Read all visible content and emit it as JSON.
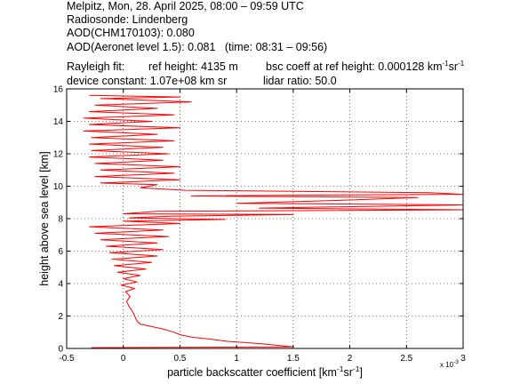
{
  "header": {
    "line1": "Melpitz, Mon, 28. April 2025, 08:00 – 09:59 UTC",
    "line2": "Radiosonde: Lindenberg",
    "line3": "AOD(CHM170103): 0.080",
    "line4": "AOD(Aeronet level 1.5): 0.081   (time: 08:31 – 09:56)",
    "rayleigh_label": "Rayleigh fit:",
    "ref_height": "ref height: 4135 m",
    "bsc_coeff_prefix": "bsc coeff at ref height: 0.000128 km",
    "bsc_coeff_unit_km_exp": "-1",
    "bsc_coeff_unit_sr": "sr",
    "bsc_coeff_unit_sr_exp": "-1",
    "device_constant": "device constant: 1.07e+08 km sr",
    "lidar_ratio": "lidar ratio: 50.0"
  },
  "chart_data": {
    "type": "line",
    "xlabel_prefix": "particle backscatter coefficient [km",
    "xlabel_exp1": "-1",
    "xlabel_mid": "sr",
    "xlabel_exp2": "-1",
    "xlabel_suffix": "]",
    "ylabel": "height above sea level [km]",
    "x_multiplier_label": "x 10",
    "x_multiplier_exp": "-3",
    "xlim": [
      -0.5,
      3
    ],
    "ylim": [
      0,
      16
    ],
    "xticks": [
      -0.5,
      0,
      0.5,
      1,
      1.5,
      2,
      2.5,
      3
    ],
    "xtick_labels": [
      "-0.5",
      "0",
      "0.5",
      "1",
      "1.5",
      "2",
      "2.5",
      "3"
    ],
    "yticks": [
      0,
      2,
      4,
      6,
      8,
      10,
      12,
      14,
      16
    ],
    "ytick_labels": [
      "0",
      "2",
      "4",
      "6",
      "8",
      "10",
      "12",
      "14",
      "16"
    ],
    "grid": true,
    "line_color": "#ff0000",
    "series": [
      {
        "points": [
          [
            -0.28,
            0.05
          ],
          [
            1.5,
            0.1
          ],
          [
            1.2,
            0.3
          ],
          [
            0.9,
            0.45
          ],
          [
            0.8,
            0.55
          ],
          [
            0.6,
            0.7
          ],
          [
            0.5,
            0.85
          ],
          [
            0.45,
            1.0
          ],
          [
            0.35,
            1.2
          ],
          [
            0.25,
            1.35
          ],
          [
            0.15,
            1.5
          ],
          [
            0.12,
            1.7
          ],
          [
            0.1,
            2.0
          ],
          [
            0.08,
            2.3
          ],
          [
            0.05,
            2.6
          ],
          [
            0.03,
            2.9
          ],
          [
            0.06,
            3.2
          ],
          [
            0.02,
            3.5
          ],
          [
            0.1,
            3.7
          ],
          [
            -0.02,
            3.9
          ],
          [
            0.12,
            4.1
          ],
          [
            0.0,
            4.3
          ],
          [
            0.15,
            4.5
          ],
          [
            -0.05,
            4.7
          ],
          [
            0.2,
            4.9
          ],
          [
            -0.08,
            5.1
          ],
          [
            0.25,
            5.3
          ],
          [
            -0.1,
            5.5
          ],
          [
            0.3,
            5.7
          ],
          [
            -0.12,
            5.9
          ],
          [
            0.35,
            6.1
          ],
          [
            -0.15,
            6.3
          ],
          [
            0.3,
            6.5
          ],
          [
            -0.2,
            6.7
          ],
          [
            0.4,
            6.9
          ],
          [
            -0.25,
            7.1
          ],
          [
            0.35,
            7.3
          ],
          [
            -0.3,
            7.5
          ],
          [
            0.5,
            7.7
          ],
          [
            0.0,
            7.85
          ],
          [
            0.9,
            7.95
          ],
          [
            0.05,
            8.05
          ],
          [
            0.4,
            8.15
          ],
          [
            1.5,
            8.25
          ],
          [
            0.0,
            8.3
          ],
          [
            0.3,
            8.45
          ],
          [
            3.0,
            8.55
          ],
          [
            1.2,
            8.65
          ],
          [
            3.0,
            8.85
          ],
          [
            1.0,
            8.95
          ],
          [
            2.0,
            9.15
          ],
          [
            2.6,
            9.3
          ],
          [
            0.6,
            9.4
          ],
          [
            3.0,
            9.5
          ],
          [
            2.7,
            9.6
          ],
          [
            0.55,
            9.75
          ],
          [
            0.15,
            9.9
          ],
          [
            0.3,
            10.1
          ],
          [
            -0.2,
            10.2
          ],
          [
            0.5,
            10.4
          ],
          [
            -0.25,
            10.6
          ],
          [
            0.45,
            10.8
          ],
          [
            -0.2,
            11.0
          ],
          [
            0.5,
            11.2
          ],
          [
            -0.25,
            11.4
          ],
          [
            0.35,
            11.6
          ],
          [
            -0.3,
            11.8
          ],
          [
            0.4,
            12.0
          ],
          [
            -0.28,
            12.2
          ],
          [
            0.35,
            12.4
          ],
          [
            -0.3,
            12.6
          ],
          [
            0.45,
            12.8
          ],
          [
            -0.28,
            13.0
          ],
          [
            0.3,
            13.2
          ],
          [
            -0.35,
            13.4
          ],
          [
            0.5,
            13.6
          ],
          [
            -0.3,
            13.8
          ],
          [
            0.25,
            14.0
          ],
          [
            -0.35,
            14.2
          ],
          [
            0.45,
            14.4
          ],
          [
            -0.3,
            14.6
          ],
          [
            0.3,
            14.8
          ],
          [
            -0.25,
            15.0
          ],
          [
            0.6,
            15.2
          ],
          [
            -0.2,
            15.4
          ],
          [
            0.5,
            15.5
          ],
          [
            -0.3,
            15.6
          ]
        ]
      }
    ]
  }
}
